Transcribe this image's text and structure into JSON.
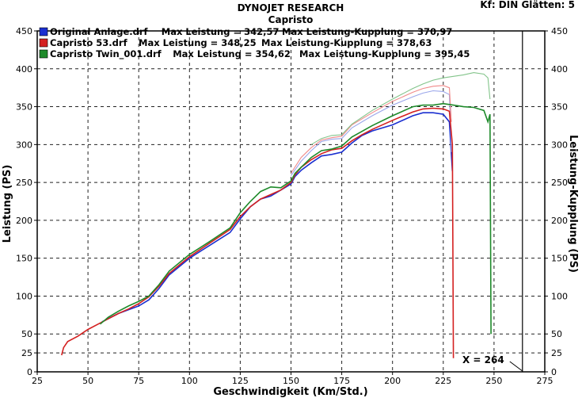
{
  "header": {
    "title": "DYNOJET RESEARCH",
    "subtitle": "Capristo",
    "corner": "Kf: DIN  Glätten: 5"
  },
  "cursor_label": "X = 264",
  "chart_data": {
    "type": "line",
    "xlabel": "Geschwindigkeit (Km/Std.)",
    "ylabel": "Leistung (PS)",
    "y2label": "Leistung-Kupplung (PS)",
    "xlim": [
      25,
      275
    ],
    "ylim": [
      0,
      450
    ],
    "y2lim": [
      0,
      450
    ],
    "x_ticks": [
      25,
      50,
      75,
      100,
      125,
      150,
      175,
      200,
      225,
      250,
      275
    ],
    "y_ticks": [
      0,
      25,
      50,
      100,
      150,
      200,
      250,
      300,
      350,
      400,
      450
    ],
    "grid": true,
    "legend_position": "top-left",
    "cursor_x": 264,
    "legend": [
      {
        "file": "Original Anlage.drf",
        "max_leistung_label": "Max Leistung = 342,57",
        "max_kupplung_label": "Max Leistung-Kupplung = 370,97",
        "color": "#1a2fd0"
      },
      {
        "file": "Capristo 53.drf",
        "max_leistung_label": "Max Leistung = 348,25",
        "max_kupplung_label": "Max Leistung-Kupplung = 378,63",
        "color": "#d42020"
      },
      {
        "file": "Capristo Twin_001.drf",
        "max_leistung_label": "Max Leistung = 354,62",
        "max_kupplung_label": "Max Leistung-Kupplung = 395,45",
        "color": "#1e8a2a"
      }
    ],
    "series": [
      {
        "name": "Original Anlage.drf",
        "kind": "leistung",
        "color": "#1a2fd0",
        "x": [
          57,
          65,
          75,
          80,
          85,
          90,
          100,
          110,
          120,
          125,
          130,
          135,
          140,
          145,
          150,
          152,
          155,
          160,
          165,
          170,
          175,
          180,
          185,
          190,
          200,
          210,
          215,
          220,
          225,
          228,
          229.5
        ],
        "y": [
          66,
          77,
          87,
          95,
          110,
          128,
          150,
          167,
          184,
          202,
          218,
          228,
          232,
          240,
          248,
          258,
          266,
          276,
          285,
          287,
          290,
          302,
          312,
          318,
          326,
          338,
          342,
          342,
          340,
          330,
          265
        ]
      },
      {
        "name": "Original Anlage.drf",
        "kind": "kupplung",
        "color": "#9aa6ea",
        "x": [
          150,
          155,
          160,
          165,
          170,
          175,
          180,
          190,
          200,
          210,
          215,
          220,
          225,
          228,
          229
        ],
        "y": [
          259,
          278,
          292,
          304,
          307,
          308,
          322,
          338,
          352,
          363,
          368,
          371,
          370,
          366,
          290
        ]
      },
      {
        "name": "Capristo 53.drf",
        "kind": "leistung",
        "color": "#d42020",
        "x": [
          37,
          38,
          40,
          45,
          50,
          55,
          60,
          65,
          70,
          75,
          80,
          85,
          90,
          95,
          100,
          110,
          120,
          125,
          130,
          135,
          140,
          145,
          150,
          152,
          155,
          160,
          165,
          170,
          175,
          180,
          185,
          190,
          200,
          210,
          215,
          220,
          225,
          228,
          229.5,
          230
        ],
        "y": [
          22,
          32,
          40,
          47,
          56,
          63,
          70,
          77,
          83,
          90,
          99,
          113,
          130,
          141,
          152,
          170,
          188,
          205,
          218,
          228,
          234,
          240,
          250,
          260,
          270,
          280,
          288,
          293,
          295,
          305,
          313,
          320,
          332,
          343,
          347,
          348,
          347,
          344,
          300,
          18
        ]
      },
      {
        "name": "Capristo 53.drf",
        "kind": "kupplung",
        "color": "#f08a8a",
        "x": [
          150,
          155,
          160,
          165,
          170,
          175,
          180,
          190,
          200,
          210,
          215,
          220,
          225,
          228,
          229
        ],
        "y": [
          262,
          283,
          296,
          306,
          309,
          311,
          326,
          342,
          357,
          369,
          374,
          377,
          378,
          375,
          330
        ]
      },
      {
        "name": "Capristo Twin_001.drf",
        "kind": "leistung",
        "color": "#1e8a2a",
        "x": [
          56,
          60,
          65,
          70,
          75,
          80,
          85,
          90,
          100,
          110,
          120,
          125,
          130,
          135,
          140,
          145,
          150,
          152,
          155,
          160,
          165,
          170,
          175,
          180,
          190,
          200,
          210,
          215,
          220,
          225,
          230,
          235,
          240,
          245,
          247,
          248,
          248.5
        ],
        "y": [
          63,
          72,
          80,
          87,
          93,
          100,
          115,
          133,
          155,
          172,
          190,
          210,
          225,
          238,
          244,
          243,
          252,
          262,
          270,
          283,
          292,
          294,
          298,
          310,
          325,
          338,
          350,
          352,
          352,
          354,
          352,
          350,
          349,
          345,
          330,
          340,
          50
        ]
      },
      {
        "name": "Capristo Twin_001.drf",
        "kind": "kupplung",
        "color": "#82c48a",
        "x": [
          160,
          165,
          170,
          175,
          180,
          190,
          200,
          210,
          215,
          220,
          225,
          230,
          235,
          240,
          245,
          247,
          248
        ],
        "y": [
          300,
          308,
          312,
          313,
          327,
          345,
          360,
          374,
          380,
          385,
          388,
          390,
          392,
          395,
          393,
          388,
          360
        ]
      }
    ]
  }
}
